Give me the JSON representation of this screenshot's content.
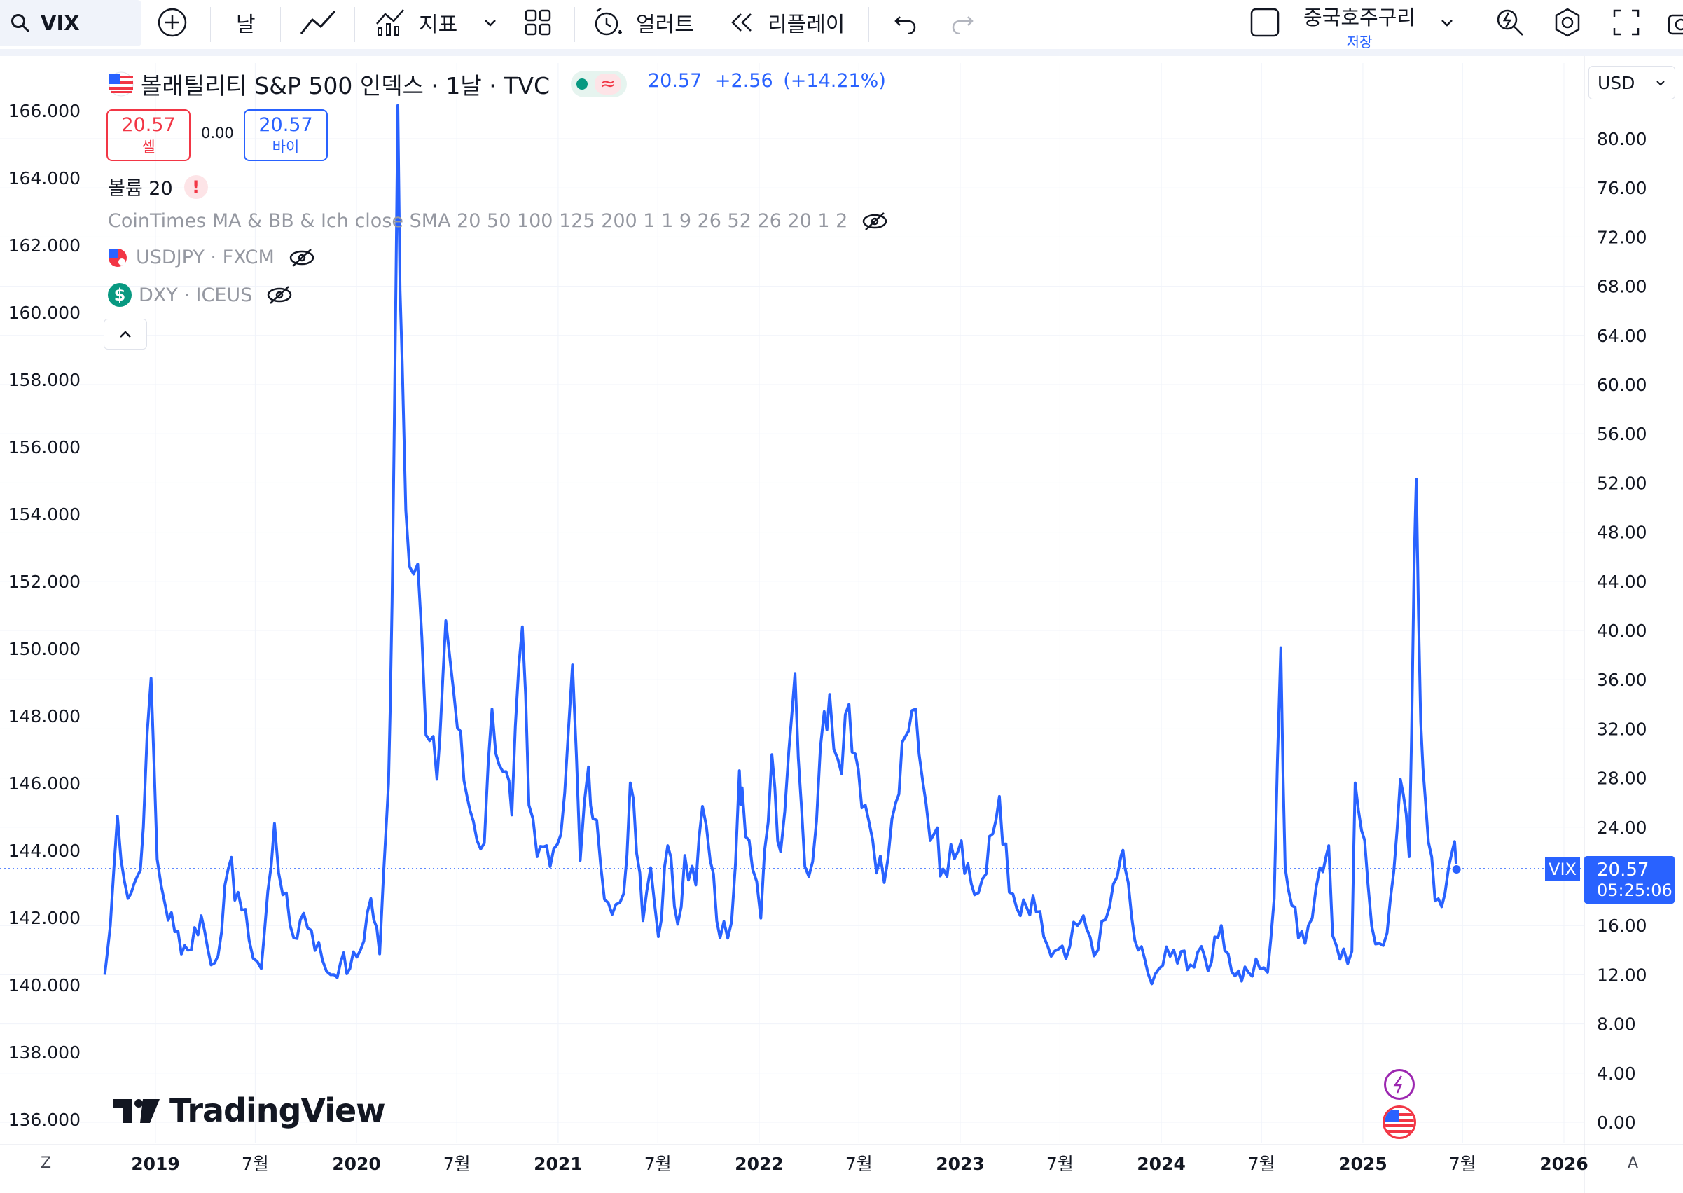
{
  "toolbar": {
    "symbol": "VIX",
    "interval": "날",
    "indicators_label": "지표",
    "alert_label": "얼러트",
    "replay_label": "리플레이",
    "layout_name": "중국호주구리",
    "save_label": "저장"
  },
  "legend": {
    "title": "볼래틸리티 S&P 500 인덱스 · 1날 · TVC",
    "last": "20.57",
    "change": "+2.56",
    "change_pct": "(+14.21%)",
    "sell_price": "20.57",
    "sell_label": "셀",
    "spread": "0.00",
    "buy_price": "20.57",
    "buy_label": "바이",
    "volume_label": "볼륨 20",
    "study_ma": "CoinTimes MA & BB & Ich close SMA 20 50 100 125 200 1 1 9 26 52 26 20 1 2",
    "study_usdjpy": "USDJPY · FXCM",
    "study_dxy": "DXY · ICEUS"
  },
  "currency": "USD",
  "badge": {
    "symbol": "VIX",
    "price": "20.57",
    "countdown": "05:25:06"
  },
  "watermark": "TradingView",
  "corner_left": "Z",
  "corner_right": "A",
  "colors": {
    "line": "#2962ff",
    "grid": "#f0f3fa",
    "badge": "#2962ff",
    "sell": "#f23645",
    "up": "#2962ff",
    "pill": "#e6f4ef"
  },
  "chart_data": {
    "type": "line",
    "title": "볼래틸리티 S&P 500 인덱스 · 1날 · TVC",
    "series": [
      {
        "name": "VIX",
        "x": [
          "2018-10-01",
          "2018-10-11",
          "2018-10-24",
          "2018-11-12",
          "2018-11-29",
          "2018-12-10",
          "2018-12-24",
          "2019-01-04",
          "2019-01-18",
          "2019-02-05",
          "2019-03-01",
          "2019-03-25",
          "2019-04-12",
          "2019-05-01",
          "2019-05-13",
          "2019-05-31",
          "2019-06-20",
          "2019-07-12",
          "2019-08-05",
          "2019-08-20",
          "2019-09-09",
          "2019-09-27",
          "2019-10-11",
          "2019-10-31",
          "2019-11-15",
          "2019-12-03",
          "2019-12-20",
          "2020-01-08",
          "2020-01-27",
          "2020-02-12",
          "2020-02-25",
          "2020-03-02",
          "2020-03-09",
          "2020-03-16",
          "2020-03-24",
          "2020-04-06",
          "2020-04-21",
          "2020-05-06",
          "2020-05-26",
          "2020-06-11",
          "2020-06-26",
          "2020-07-14",
          "2020-07-31",
          "2020-08-20",
          "2020-09-03",
          "2020-09-23",
          "2020-10-09",
          "2020-10-28",
          "2020-11-09",
          "2020-11-24",
          "2020-12-11",
          "2021-01-06",
          "2021-01-27",
          "2021-02-10",
          "2021-02-25",
          "2021-03-05",
          "2021-03-19",
          "2021-04-09",
          "2021-04-30",
          "2021-05-12",
          "2021-06-04",
          "2021-06-18",
          "2021-07-02",
          "2021-07-19",
          "2021-08-06",
          "2021-08-19",
          "2021-09-08",
          "2021-09-20",
          "2021-10-04",
          "2021-10-22",
          "2021-11-12",
          "2021-11-26",
          "2021-12-01",
          "2021-12-20",
          "2022-01-04",
          "2022-01-24",
          "2022-02-09",
          "2022-02-24",
          "2022-03-07",
          "2022-03-25",
          "2022-04-08",
          "2022-04-29",
          "2022-05-09",
          "2022-05-24",
          "2022-06-13",
          "2022-06-30",
          "2022-07-19",
          "2022-08-16",
          "2022-09-06",
          "2022-09-29",
          "2022-10-12",
          "2022-10-31",
          "2022-11-15",
          "2022-12-01",
          "2022-12-15",
          "2023-01-03",
          "2023-01-27",
          "2023-02-17",
          "2023-03-13",
          "2023-03-31",
          "2023-04-20",
          "2023-05-19",
          "2023-06-15",
          "2023-07-12",
          "2023-08-02",
          "2023-08-18",
          "2023-09-08",
          "2023-09-29",
          "2023-10-20",
          "2023-10-27",
          "2023-11-14",
          "2023-12-08",
          "2023-12-28",
          "2024-01-17",
          "2024-02-06",
          "2024-02-23",
          "2024-03-14",
          "2024-04-01",
          "2024-04-19",
          "2024-05-14",
          "2024-06-07",
          "2024-06-28",
          "2024-07-12",
          "2024-07-24",
          "2024-08-05",
          "2024-08-13",
          "2024-09-06",
          "2024-09-24",
          "2024-10-15",
          "2024-10-31",
          "2024-11-07",
          "2024-11-27",
          "2024-12-12",
          "2024-12-18",
          "2025-01-10",
          "2025-01-24",
          "2025-02-14",
          "2025-03-10",
          "2025-03-26",
          "2025-04-04",
          "2025-04-08",
          "2025-04-16",
          "2025-04-24",
          "2025-05-12",
          "2025-05-30",
          "2025-06-13",
          "2025-06-20"
        ],
        "values": [
          12.0,
          16.0,
          24.9,
          18.2,
          20.0,
          24.0,
          36.1,
          21.4,
          17.8,
          15.5,
          14.0,
          16.8,
          12.8,
          15.5,
          20.6,
          18.7,
          14.8,
          12.5,
          24.3,
          18.5,
          15.0,
          17.0,
          15.6,
          13.2,
          12.0,
          13.0,
          12.5,
          14.0,
          18.2,
          13.7,
          25.0,
          33.4,
          54.5,
          82.7,
          61.7,
          45.2,
          45.4,
          31.5,
          27.9,
          40.8,
          34.7,
          27.8,
          24.5,
          22.7,
          33.6,
          28.5,
          25.0,
          40.3,
          25.8,
          21.6,
          22.5,
          23.4,
          37.2,
          21.3,
          28.9,
          24.7,
          21.0,
          16.9,
          18.6,
          27.6,
          16.4,
          20.7,
          15.1,
          22.5,
          16.1,
          21.7,
          19.3,
          25.7,
          21.3,
          15.0,
          16.3,
          28.6,
          27.2,
          20.6,
          16.6,
          29.9,
          22.0,
          30.3,
          36.5,
          20.8,
          21.2,
          33.4,
          34.8,
          29.5,
          34.0,
          28.7,
          24.5,
          19.5,
          26.0,
          31.8,
          33.6,
          25.9,
          23.5,
          20.6,
          22.6,
          22.9,
          18.5,
          20.2,
          26.5,
          18.7,
          16.8,
          17.1,
          13.5,
          13.3,
          16.0,
          15.8,
          14.0,
          17.5,
          21.7,
          20.7,
          14.8,
          12.1,
          12.5,
          13.5,
          13.9,
          12.8,
          14.3,
          13.0,
          16.0,
          11.9,
          12.2,
          12.5,
          12.2,
          18.2,
          38.6,
          20.7,
          15.0,
          16.0,
          20.7,
          22.5,
          15.2,
          14.1,
          13.9,
          27.6,
          19.5,
          14.5,
          15.4,
          27.9,
          21.6,
          45.3,
          52.3,
          32.6,
          26.5,
          18.0,
          18.6,
          22.2,
          20.6
        ]
      }
    ],
    "x_tick_labels": [
      "2019",
      "7월",
      "2020",
      "7월",
      "2021",
      "7월",
      "2022",
      "7월",
      "2023",
      "7월",
      "2024",
      "7월",
      "2025",
      "7월",
      "2026"
    ],
    "y_right_ticks": [
      "80.00",
      "76.00",
      "72.00",
      "68.00",
      "64.00",
      "60.00",
      "56.00",
      "52.00",
      "48.00",
      "44.00",
      "40.00",
      "36.00",
      "32.00",
      "28.00",
      "24.00",
      "16.00",
      "12.00",
      "8.00",
      "4.00",
      "0.00"
    ],
    "y_left_ticks": [
      "166.000",
      "164.000",
      "162.000",
      "160.000",
      "158.000",
      "156.000",
      "154.000",
      "152.000",
      "150.000",
      "148.000",
      "146.000",
      "144.000",
      "142.000",
      "140.000",
      "138.000",
      "136.000"
    ],
    "ylim": [
      0,
      84
    ],
    "last_value": 20.57,
    "grid": true
  }
}
